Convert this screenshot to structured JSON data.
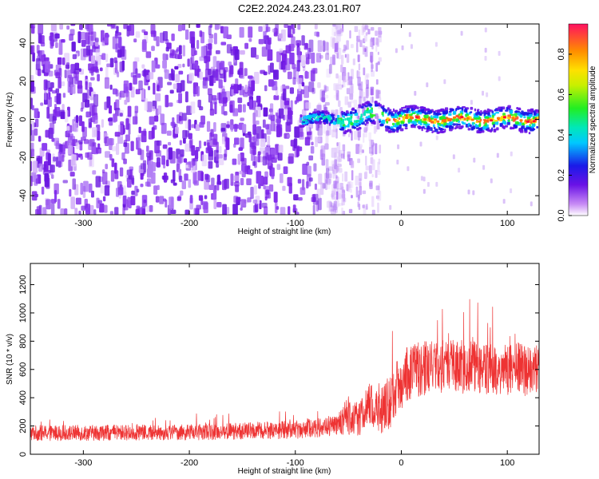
{
  "title": "C2E2.2024.243.23.01.R07",
  "colors": {
    "background": "#ffffff",
    "snr_line": "#ee3333",
    "noise_purple": "#7b22e8",
    "light_purple": "#e8d4ff"
  },
  "chart_data": [
    {
      "type": "heatmap",
      "name": "spectrogram",
      "xlabel": "Height of straight line (km)",
      "ylabel": "Frequency (Hz)",
      "xlim": [
        -350,
        130
      ],
      "ylim": [
        -50,
        50
      ],
      "xticks": [
        -300,
        -200,
        -100,
        0,
        100
      ],
      "xtick_labels": [
        "-300",
        "-200",
        "-100",
        "0",
        "100"
      ],
      "yticks": [
        -40,
        -20,
        0,
        20,
        40
      ],
      "ytick_labels": [
        "-40",
        "-20",
        "0",
        "20",
        "40"
      ],
      "noise_region_x": [
        -350,
        -65
      ],
      "sparse_region_x": [
        -65,
        -18
      ],
      "signal_start_x": -95,
      "signal_center_freq": 0,
      "colorbar": {
        "label": "Normalized spectral amplitude",
        "range": [
          0.0,
          0.95
        ],
        "ticks": [
          0.0,
          0.2,
          0.4,
          0.6,
          0.8
        ],
        "tick_labels": [
          "0.0",
          "0.2",
          "0.4",
          "0.6",
          "0.8"
        ]
      }
    },
    {
      "type": "line",
      "name": "snr",
      "xlabel": "Height of straight line (km)",
      "ylabel": "SNR (10 * v/v)",
      "xlim": [
        -350,
        130
      ],
      "ylim": [
        0,
        1350
      ],
      "xticks": [
        -300,
        -200,
        -100,
        0,
        100
      ],
      "xtick_labels": [
        "-300",
        "-200",
        "-100",
        "0",
        "100"
      ],
      "yticks": [
        0,
        200,
        400,
        600,
        800,
        1000,
        1200
      ],
      "ytick_labels": [
        "0",
        "200",
        "400",
        "600",
        "800",
        "1000",
        "1200"
      ],
      "envelope": {
        "x": [
          -350,
          -200,
          -100,
          -60,
          -50,
          -40,
          -30,
          -20,
          -10,
          0,
          10,
          30,
          60,
          100,
          130
        ],
        "mean": [
          150,
          155,
          175,
          200,
          280,
          250,
          350,
          300,
          380,
          520,
          600,
          620,
          620,
          600,
          600
        ],
        "spread": [
          110,
          110,
          130,
          150,
          280,
          250,
          300,
          330,
          380,
          400,
          400,
          380,
          380,
          380,
          380
        ]
      }
    }
  ]
}
